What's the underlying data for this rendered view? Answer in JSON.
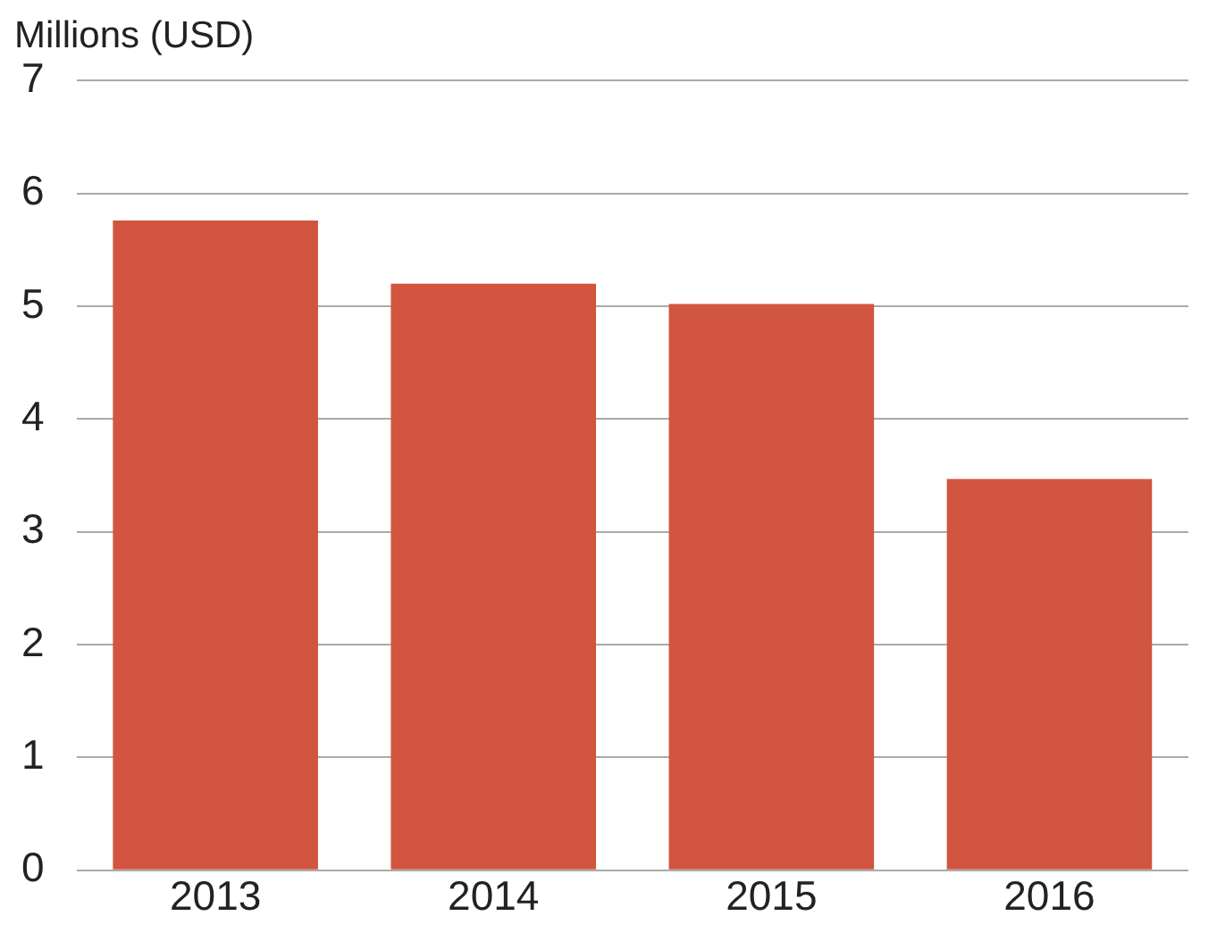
{
  "chart_data": {
    "type": "bar",
    "ylabel": "Millions (USD)",
    "categories": [
      "2013",
      "2014",
      "2015",
      "2016"
    ],
    "values": [
      5.76,
      5.2,
      5.02,
      3.47
    ],
    "color": "#d2553f",
    "ylim": [
      0,
      7
    ],
    "yticks": [
      0,
      1,
      2,
      3,
      4,
      5,
      6,
      7
    ],
    "grid": "y",
    "legend": false
  }
}
